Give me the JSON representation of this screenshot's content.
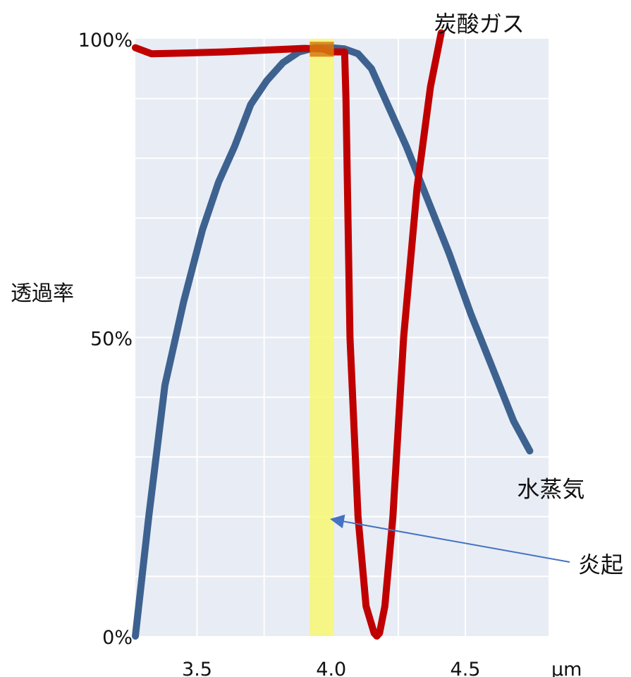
{
  "chart_data": {
    "type": "line",
    "title": "",
    "xlabel": "",
    "x_unit": "μm",
    "ylabel": "透過率",
    "xlim": [
      3.27,
      4.81
    ],
    "ylim": [
      0,
      100
    ],
    "x_ticks": [
      {
        "value": 3.5,
        "label": "3.5"
      },
      {
        "value": 4.0,
        "label": "4.0"
      },
      {
        "value": 4.5,
        "label": "4.5"
      }
    ],
    "y_ticks": [
      {
        "value": 0,
        "label": "0%"
      },
      {
        "value": 50,
        "label": "50%"
      },
      {
        "value": 100,
        "label": "100%"
      }
    ],
    "grid": true,
    "background_color": "#e8ecf4",
    "grid_color": "#ffffff",
    "series": [
      {
        "name": "水蒸気",
        "color": "#3d6290",
        "x": [
          3.27,
          3.32,
          3.38,
          3.45,
          3.52,
          3.58,
          3.64,
          3.7,
          3.76,
          3.82,
          3.88,
          3.94,
          4.0,
          4.05,
          4.1,
          4.15,
          4.2,
          4.28,
          4.36,
          4.44,
          4.52,
          4.6,
          4.68,
          4.74
        ],
        "y": [
          0,
          20,
          42,
          56,
          68,
          76,
          82,
          89,
          93,
          96,
          97.8,
          98.5,
          98.5,
          98.3,
          97.5,
          95,
          90,
          82,
          73,
          64,
          54,
          45,
          36,
          31
        ]
      },
      {
        "name": "炭酸ガス",
        "color": "#c00000",
        "x": [
          3.27,
          3.33,
          3.45,
          3.6,
          3.75,
          3.9,
          3.97,
          4.0,
          4.03,
          4.05,
          4.055,
          4.07,
          4.1,
          4.13,
          4.16,
          4.17,
          4.18,
          4.2,
          4.23,
          4.27,
          4.32,
          4.37,
          4.41
        ],
        "y": [
          98.5,
          97.5,
          97.6,
          97.8,
          98.1,
          98.4,
          98.3,
          97.8,
          97.8,
          97.8,
          90,
          50,
          20,
          5,
          0.5,
          0,
          0.5,
          5,
          20,
          50,
          75,
          92,
          101
        ]
      }
    ],
    "band": {
      "x_start": 3.92,
      "x_end": 4.01,
      "color": "#f7f77a",
      "overlap_color": "#d87a10"
    },
    "annotations": [
      {
        "text": "水蒸気",
        "series": "水蒸気"
      },
      {
        "text": "炭酸ガス",
        "series": "炭酸ガス"
      },
      {
        "text": "炎起",
        "target": {
          "x": 3.99,
          "y": 20
        }
      }
    ]
  }
}
